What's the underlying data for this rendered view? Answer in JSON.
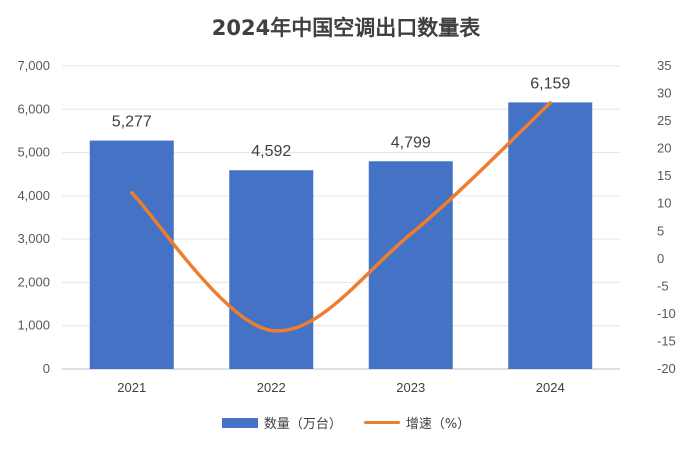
{
  "chart_data": {
    "type": "bar",
    "title": "2024年中国空调出口数量表",
    "categories": [
      "2021",
      "2022",
      "2023",
      "2024"
    ],
    "series": [
      {
        "name": "数量（万台）",
        "type": "bar",
        "axis": "left",
        "values": [
          5277,
          4592,
          4799,
          6159
        ],
        "labels": [
          "5,277",
          "4,592",
          "4,799",
          "6,159"
        ],
        "color": "#4472C4"
      },
      {
        "name": "增速（%）",
        "type": "line",
        "axis": "right",
        "values": [
          12,
          -13,
          4.5,
          28.3
        ],
        "color": "#ED7D31"
      }
    ],
    "y_left": {
      "min": 0,
      "max": 7000,
      "step": 1000,
      "ticks": [
        "0",
        "1,000",
        "2,000",
        "3,000",
        "4,000",
        "5,000",
        "6,000",
        "7,000"
      ]
    },
    "y_right": {
      "min": -20,
      "max": 35,
      "step": 5,
      "ticks": [
        "-20",
        "-15",
        "-10",
        "-5",
        "0",
        "5",
        "10",
        "15",
        "20",
        "25",
        "30",
        "35"
      ]
    },
    "grid": true,
    "legend": "bottom-center"
  }
}
